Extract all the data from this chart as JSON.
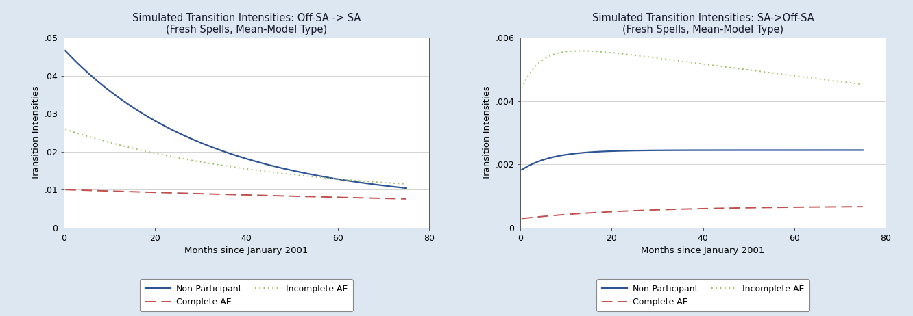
{
  "background_color": "#dce7f1",
  "plot_bg_color": "#ffffff",
  "left_title": "Simulated Transition Intensities: Off-SA -> SA",
  "left_subtitle": "(Fresh Spells, Mean-Model Type)",
  "left_xlabel": "Months since January 2001",
  "left_ylabel": "Transition Intensities",
  "left_xlim": [
    0,
    80
  ],
  "left_ylim": [
    0,
    0.05
  ],
  "left_yticks": [
    0,
    0.01,
    0.02,
    0.03,
    0.04,
    0.05
  ],
  "left_ytick_labels": [
    "0",
    ".01",
    ".02",
    ".03",
    ".04",
    ".05"
  ],
  "left_xticks": [
    0,
    20,
    40,
    60,
    80
  ],
  "right_title": "Simulated Transition Intensities: SA->Off-SA",
  "right_subtitle": "(Fresh Spells, Mean-Model Type)",
  "right_xlabel": "Months since January 2001",
  "right_ylabel": "Transition Intensities",
  "right_xlim": [
    0,
    80
  ],
  "right_ylim": [
    0,
    0.006
  ],
  "right_yticks": [
    0,
    0.002,
    0.004,
    0.006
  ],
  "right_ytick_labels": [
    "0",
    ".002",
    ".004",
    ".006"
  ],
  "right_xticks": [
    0,
    20,
    40,
    60,
    80
  ],
  "color_non_participant": "#2f5496",
  "color_complete_ae": "#c0504d",
  "color_incomplete_ae": "#9bbb59",
  "legend_labels": [
    "Non-Participant",
    "Complete AE",
    "Incomplete AE"
  ]
}
